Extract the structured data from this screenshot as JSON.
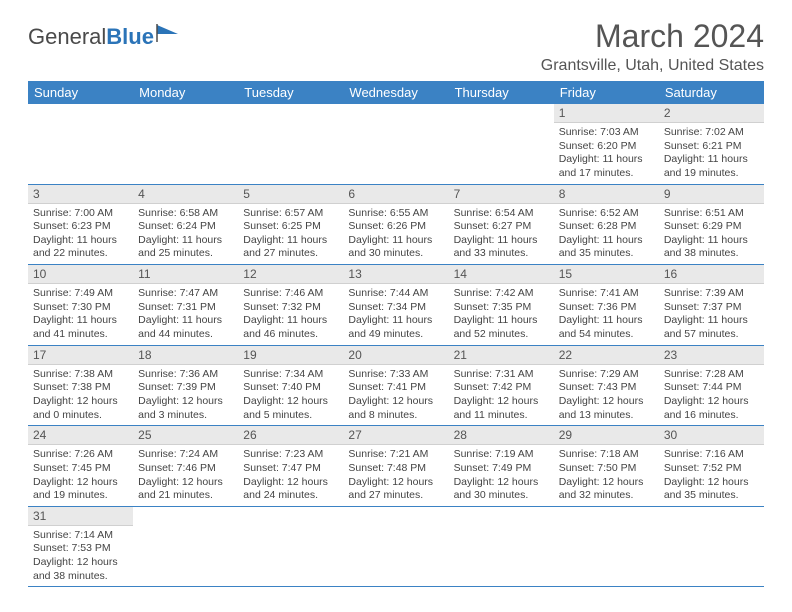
{
  "brand": {
    "part1": "General",
    "part2": "Blue"
  },
  "title": "March 2024",
  "location": "Grantsville, Utah, United States",
  "colors": {
    "header_bg": "#3b82c4",
    "daynum_bg": "#e9e9e9",
    "border": "#3b82c4",
    "logo_blue": "#2b74b8"
  },
  "weekdays": [
    "Sunday",
    "Monday",
    "Tuesday",
    "Wednesday",
    "Thursday",
    "Friday",
    "Saturday"
  ],
  "weeks": [
    [
      null,
      null,
      null,
      null,
      null,
      {
        "n": "1",
        "sr": "Sunrise: 7:03 AM",
        "ss": "Sunset: 6:20 PM",
        "dl1": "Daylight: 11 hours",
        "dl2": "and 17 minutes."
      },
      {
        "n": "2",
        "sr": "Sunrise: 7:02 AM",
        "ss": "Sunset: 6:21 PM",
        "dl1": "Daylight: 11 hours",
        "dl2": "and 19 minutes."
      }
    ],
    [
      {
        "n": "3",
        "sr": "Sunrise: 7:00 AM",
        "ss": "Sunset: 6:23 PM",
        "dl1": "Daylight: 11 hours",
        "dl2": "and 22 minutes."
      },
      {
        "n": "4",
        "sr": "Sunrise: 6:58 AM",
        "ss": "Sunset: 6:24 PM",
        "dl1": "Daylight: 11 hours",
        "dl2": "and 25 minutes."
      },
      {
        "n": "5",
        "sr": "Sunrise: 6:57 AM",
        "ss": "Sunset: 6:25 PM",
        "dl1": "Daylight: 11 hours",
        "dl2": "and 27 minutes."
      },
      {
        "n": "6",
        "sr": "Sunrise: 6:55 AM",
        "ss": "Sunset: 6:26 PM",
        "dl1": "Daylight: 11 hours",
        "dl2": "and 30 minutes."
      },
      {
        "n": "7",
        "sr": "Sunrise: 6:54 AM",
        "ss": "Sunset: 6:27 PM",
        "dl1": "Daylight: 11 hours",
        "dl2": "and 33 minutes."
      },
      {
        "n": "8",
        "sr": "Sunrise: 6:52 AM",
        "ss": "Sunset: 6:28 PM",
        "dl1": "Daylight: 11 hours",
        "dl2": "and 35 minutes."
      },
      {
        "n": "9",
        "sr": "Sunrise: 6:51 AM",
        "ss": "Sunset: 6:29 PM",
        "dl1": "Daylight: 11 hours",
        "dl2": "and 38 minutes."
      }
    ],
    [
      {
        "n": "10",
        "sr": "Sunrise: 7:49 AM",
        "ss": "Sunset: 7:30 PM",
        "dl1": "Daylight: 11 hours",
        "dl2": "and 41 minutes."
      },
      {
        "n": "11",
        "sr": "Sunrise: 7:47 AM",
        "ss": "Sunset: 7:31 PM",
        "dl1": "Daylight: 11 hours",
        "dl2": "and 44 minutes."
      },
      {
        "n": "12",
        "sr": "Sunrise: 7:46 AM",
        "ss": "Sunset: 7:32 PM",
        "dl1": "Daylight: 11 hours",
        "dl2": "and 46 minutes."
      },
      {
        "n": "13",
        "sr": "Sunrise: 7:44 AM",
        "ss": "Sunset: 7:34 PM",
        "dl1": "Daylight: 11 hours",
        "dl2": "and 49 minutes."
      },
      {
        "n": "14",
        "sr": "Sunrise: 7:42 AM",
        "ss": "Sunset: 7:35 PM",
        "dl1": "Daylight: 11 hours",
        "dl2": "and 52 minutes."
      },
      {
        "n": "15",
        "sr": "Sunrise: 7:41 AM",
        "ss": "Sunset: 7:36 PM",
        "dl1": "Daylight: 11 hours",
        "dl2": "and 54 minutes."
      },
      {
        "n": "16",
        "sr": "Sunrise: 7:39 AM",
        "ss": "Sunset: 7:37 PM",
        "dl1": "Daylight: 11 hours",
        "dl2": "and 57 minutes."
      }
    ],
    [
      {
        "n": "17",
        "sr": "Sunrise: 7:38 AM",
        "ss": "Sunset: 7:38 PM",
        "dl1": "Daylight: 12 hours",
        "dl2": "and 0 minutes."
      },
      {
        "n": "18",
        "sr": "Sunrise: 7:36 AM",
        "ss": "Sunset: 7:39 PM",
        "dl1": "Daylight: 12 hours",
        "dl2": "and 3 minutes."
      },
      {
        "n": "19",
        "sr": "Sunrise: 7:34 AM",
        "ss": "Sunset: 7:40 PM",
        "dl1": "Daylight: 12 hours",
        "dl2": "and 5 minutes."
      },
      {
        "n": "20",
        "sr": "Sunrise: 7:33 AM",
        "ss": "Sunset: 7:41 PM",
        "dl1": "Daylight: 12 hours",
        "dl2": "and 8 minutes."
      },
      {
        "n": "21",
        "sr": "Sunrise: 7:31 AM",
        "ss": "Sunset: 7:42 PM",
        "dl1": "Daylight: 12 hours",
        "dl2": "and 11 minutes."
      },
      {
        "n": "22",
        "sr": "Sunrise: 7:29 AM",
        "ss": "Sunset: 7:43 PM",
        "dl1": "Daylight: 12 hours",
        "dl2": "and 13 minutes."
      },
      {
        "n": "23",
        "sr": "Sunrise: 7:28 AM",
        "ss": "Sunset: 7:44 PM",
        "dl1": "Daylight: 12 hours",
        "dl2": "and 16 minutes."
      }
    ],
    [
      {
        "n": "24",
        "sr": "Sunrise: 7:26 AM",
        "ss": "Sunset: 7:45 PM",
        "dl1": "Daylight: 12 hours",
        "dl2": "and 19 minutes."
      },
      {
        "n": "25",
        "sr": "Sunrise: 7:24 AM",
        "ss": "Sunset: 7:46 PM",
        "dl1": "Daylight: 12 hours",
        "dl2": "and 21 minutes."
      },
      {
        "n": "26",
        "sr": "Sunrise: 7:23 AM",
        "ss": "Sunset: 7:47 PM",
        "dl1": "Daylight: 12 hours",
        "dl2": "and 24 minutes."
      },
      {
        "n": "27",
        "sr": "Sunrise: 7:21 AM",
        "ss": "Sunset: 7:48 PM",
        "dl1": "Daylight: 12 hours",
        "dl2": "and 27 minutes."
      },
      {
        "n": "28",
        "sr": "Sunrise: 7:19 AM",
        "ss": "Sunset: 7:49 PM",
        "dl1": "Daylight: 12 hours",
        "dl2": "and 30 minutes."
      },
      {
        "n": "29",
        "sr": "Sunrise: 7:18 AM",
        "ss": "Sunset: 7:50 PM",
        "dl1": "Daylight: 12 hours",
        "dl2": "and 32 minutes."
      },
      {
        "n": "30",
        "sr": "Sunrise: 7:16 AM",
        "ss": "Sunset: 7:52 PM",
        "dl1": "Daylight: 12 hours",
        "dl2": "and 35 minutes."
      }
    ],
    [
      {
        "n": "31",
        "sr": "Sunrise: 7:14 AM",
        "ss": "Sunset: 7:53 PM",
        "dl1": "Daylight: 12 hours",
        "dl2": "and 38 minutes."
      },
      null,
      null,
      null,
      null,
      null,
      null
    ]
  ]
}
